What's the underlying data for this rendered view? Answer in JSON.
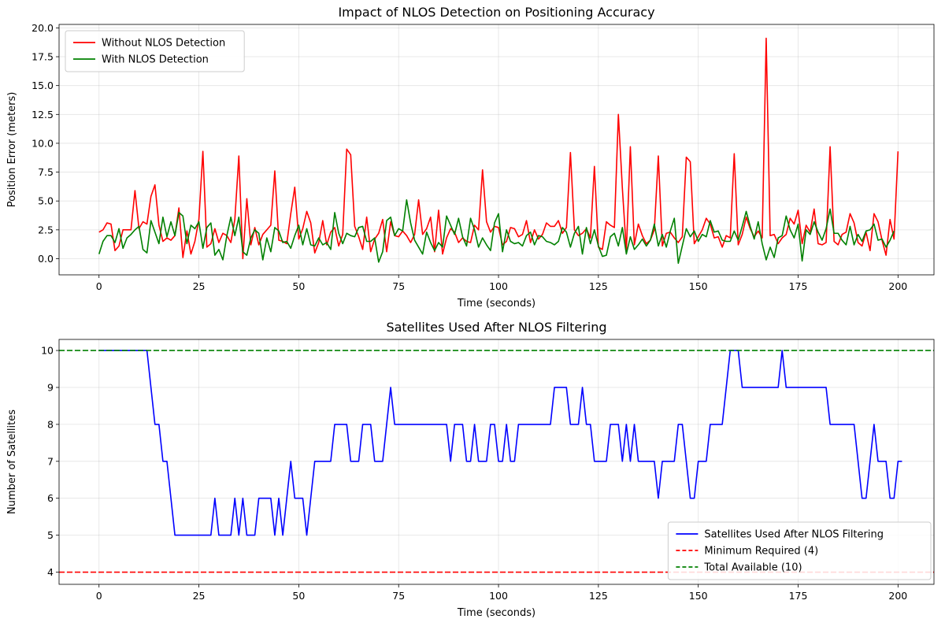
{
  "chart_data": [
    {
      "type": "line",
      "title": "Impact of NLOS Detection on Positioning Accuracy",
      "xlabel": "Time (seconds)",
      "ylabel": "Position Error (meters)",
      "xlim": [
        -10,
        209
      ],
      "ylim": [
        -1.4,
        20.3
      ],
      "xticks": [
        0,
        25,
        50,
        75,
        100,
        125,
        150,
        175,
        200
      ],
      "xtick_labels": [
        "0",
        "25",
        "50",
        "75",
        "100",
        "125",
        "150",
        "175",
        "200"
      ],
      "yticks": [
        0,
        2.5,
        5,
        7.5,
        10,
        12.5,
        15,
        17.5,
        20
      ],
      "ytick_labels": [
        "0.0",
        "2.5",
        "5.0",
        "7.5",
        "10.0",
        "12.5",
        "15.0",
        "17.5",
        "20.0"
      ],
      "grid": true,
      "legend": "upper-left",
      "series": [
        {
          "name": "Without NLOS Detection",
          "color": "#ff0000",
          "dash": "solid",
          "x_start": 0,
          "x_step": 1,
          "values": [
            2.3,
            2.5,
            3.1,
            3.0,
            0.7,
            1.1,
            2.5,
            2.5,
            2.5,
            5.9,
            2.6,
            3.2,
            3.0,
            5.4,
            6.4,
            2.9,
            1.5,
            1.8,
            1.6,
            2.0,
            4.4,
            0.1,
            2.4,
            0.4,
            1.5,
            3.4,
            9.3,
            1.0,
            1.3,
            2.6,
            1.4,
            2.2,
            2.0,
            1.4,
            3.4,
            8.9,
            0.0,
            5.2,
            1.2,
            2.7,
            1.2,
            2.1,
            2.5,
            2.9,
            7.6,
            1.6,
            1.5,
            1.3,
            3.9,
            6.2,
            1.7,
            2.6,
            4.1,
            3.1,
            0.5,
            1.4,
            3.3,
            1.2,
            2.3,
            2.7,
            1.1,
            2.1,
            9.5,
            9.0,
            2.8,
            1.9,
            0.8,
            3.6,
            0.6,
            1.7,
            2.2,
            3.4,
            0.6,
            3.2,
            2.0,
            1.9,
            2.4,
            2.0,
            1.4,
            2.1,
            5.1,
            2.1,
            2.6,
            3.6,
            0.6,
            4.2,
            0.4,
            1.8,
            2.6,
            2.3,
            1.4,
            1.8,
            1.5,
            1.4,
            2.9,
            2.5,
            7.7,
            3.2,
            2.3,
            2.8,
            2.7,
            1.2,
            1.5,
            2.7,
            2.6,
            1.9,
            2.1,
            3.3,
            1.4,
            2.5,
            1.7,
            2.1,
            3.1,
            2.8,
            2.8,
            3.3,
            2.2,
            2.7,
            9.2,
            2.5,
            2.0,
            2.2,
            2.6,
            1.8,
            8.0,
            1.0,
            0.8,
            3.2,
            2.9,
            2.7,
            12.5,
            6.1,
            0.7,
            9.7,
            1.2,
            3.0,
            2.0,
            1.3,
            1.6,
            2.5,
            8.9,
            1.1,
            2.2,
            2.3,
            1.8,
            1.4,
            1.9,
            8.8,
            8.4,
            1.3,
            1.9,
            2.5,
            3.5,
            3.0,
            1.8,
            1.9,
            1.0,
            2.0,
            1.8,
            9.1,
            1.2,
            2.1,
            3.6,
            2.6,
            1.9,
            2.4,
            1.8,
            19.1,
            2.0,
            2.1,
            1.3,
            1.8,
            2.1,
            3.5,
            3.0,
            4.2,
            1.3,
            2.9,
            2.3,
            4.3,
            1.3,
            1.2,
            1.4,
            9.7,
            1.5,
            1.2,
            2.1,
            2.3,
            3.9,
            3.1,
            1.4,
            1.1,
            2.3,
            0.7,
            3.9,
            3.2,
            1.6,
            0.3,
            3.4,
            1.7,
            9.3
          ]
        },
        {
          "name": "With NLOS Detection",
          "color": "#008000",
          "dash": "solid",
          "x_start": 0,
          "x_step": 1,
          "values": [
            0.4,
            1.5,
            2.0,
            2.0,
            1.4,
            2.6,
            0.9,
            1.8,
            2.1,
            2.5,
            2.8,
            0.8,
            0.5,
            3.3,
            2.3,
            1.3,
            3.6,
            1.9,
            3.2,
            2.0,
            4.0,
            3.7,
            1.3,
            2.9,
            2.6,
            3.2,
            0.9,
            2.7,
            3.1,
            0.3,
            0.8,
            -0.1,
            2.0,
            3.6,
            2.0,
            3.6,
            0.6,
            0.3,
            1.8,
            2.5,
            2.2,
            -0.1,
            1.8,
            0.6,
            2.7,
            2.4,
            1.4,
            1.5,
            0.9,
            2.0,
            2.9,
            1.2,
            2.6,
            1.2,
            1.1,
            1.8,
            1.2,
            1.4,
            0.8,
            4.0,
            2.2,
            1.3,
            2.2,
            2.0,
            1.9,
            2.7,
            2.8,
            1.5,
            1.5,
            1.8,
            -0.3,
            0.6,
            3.3,
            3.6,
            2.0,
            2.6,
            2.4,
            5.1,
            3.1,
            1.6,
            1.0,
            0.4,
            2.3,
            1.4,
            0.7,
            1.4,
            1.0,
            3.7,
            2.9,
            2.1,
            3.5,
            1.9,
            1.1,
            3.5,
            2.5,
            1.0,
            1.8,
            1.2,
            0.7,
            3.1,
            3.9,
            0.6,
            2.5,
            1.5,
            1.3,
            1.4,
            1.1,
            2.0,
            2.3,
            1.2,
            2.0,
            1.9,
            1.5,
            1.4,
            1.2,
            1.5,
            2.7,
            2.3,
            1.0,
            2.2,
            2.8,
            0.4,
            2.7,
            1.3,
            2.5,
            1.1,
            0.2,
            0.3,
            1.9,
            2.2,
            1.1,
            2.7,
            0.4,
            1.9,
            0.8,
            1.2,
            1.7,
            1.1,
            1.6,
            3.0,
            1.1,
            2.1,
            1.0,
            2.4,
            3.5,
            -0.4,
            1.1,
            2.6,
            1.9,
            2.4,
            1.5,
            2.1,
            1.9,
            3.3,
            2.3,
            2.4,
            1.6,
            1.5,
            1.5,
            2.4,
            1.6,
            2.8,
            4.1,
            2.8,
            1.7,
            3.2,
            1.3,
            -0.1,
            1.0,
            0.1,
            1.8,
            2.0,
            3.7,
            2.5,
            1.8,
            3.0,
            -0.2,
            2.5,
            2.1,
            3.2,
            2.3,
            1.6,
            2.6,
            4.3,
            2.2,
            2.2,
            1.6,
            1.2,
            2.8,
            1.2,
            2.1,
            1.5,
            2.4,
            2.5,
            3.0,
            1.6,
            1.7,
            1.0,
            1.6,
            2.4
          ]
        }
      ]
    },
    {
      "type": "line",
      "title": "Satellites Used After NLOS Filtering",
      "xlabel": "Time (seconds)",
      "ylabel": "Number of Satellites",
      "xlim": [
        -10,
        209
      ],
      "ylim": [
        3.67,
        10.3
      ],
      "xticks": [
        0,
        25,
        50,
        75,
        100,
        125,
        150,
        175,
        200
      ],
      "xtick_labels": [
        "0",
        "25",
        "50",
        "75",
        "100",
        "125",
        "150",
        "175",
        "200"
      ],
      "yticks": [
        4,
        5,
        6,
        7,
        8,
        9,
        10
      ],
      "ytick_labels": [
        "4",
        "5",
        "6",
        "7",
        "8",
        "9",
        "10"
      ],
      "grid": true,
      "legend": "lower-right",
      "series": [
        {
          "name": "Satellites Used After NLOS Filtering",
          "color": "#0000ff",
          "dash": "solid",
          "x_start": 0,
          "x_step": 1,
          "values": [
            10,
            10,
            10,
            10,
            10,
            10,
            10,
            10,
            10,
            10,
            10,
            10,
            10,
            9,
            8,
            8,
            7,
            7,
            6,
            5,
            5,
            5,
            5,
            5,
            5,
            5,
            5,
            5,
            5,
            6,
            5,
            5,
            5,
            5,
            6,
            5,
            6,
            5,
            5,
            5,
            6,
            6,
            6,
            6,
            5,
            6,
            5,
            6,
            7,
            6,
            6,
            6,
            5,
            6,
            7,
            7,
            7,
            7,
            7,
            8,
            8,
            8,
            8,
            7,
            7,
            7,
            8,
            8,
            8,
            7,
            7,
            7,
            8,
            9,
            8,
            8,
            8,
            8,
            8,
            8,
            8,
            8,
            8,
            8,
            8,
            8,
            8,
            8,
            7,
            8,
            8,
            8,
            7,
            7,
            8,
            7,
            7,
            7,
            8,
            8,
            7,
            7,
            8,
            7,
            7,
            8,
            8,
            8,
            8,
            8,
            8,
            8,
            8,
            8,
            9,
            9,
            9,
            9,
            8,
            8,
            8,
            9,
            8,
            8,
            7,
            7,
            7,
            7,
            8,
            8,
            8,
            7,
            8,
            7,
            8,
            7,
            7,
            7,
            7,
            7,
            6,
            7,
            7,
            7,
            7,
            8,
            8,
            7,
            6,
            6,
            7,
            7,
            7,
            8,
            8,
            8,
            8,
            9,
            10,
            10,
            10,
            9,
            9,
            9,
            9,
            9,
            9,
            9,
            9,
            9,
            9,
            10,
            9,
            9,
            9,
            9,
            9,
            9,
            9,
            9,
            9,
            9,
            9,
            8,
            8,
            8,
            8,
            8,
            8,
            8,
            7,
            6,
            6,
            7,
            8,
            7,
            7,
            7,
            6,
            6,
            7,
            7
          ]
        },
        {
          "name": "Minimum Required (4)",
          "color": "#ff0000",
          "dash": "dashed",
          "hline": 4
        },
        {
          "name": "Total Available (10)",
          "color": "#008000",
          "dash": "dashed",
          "hline": 10
        }
      ]
    }
  ]
}
